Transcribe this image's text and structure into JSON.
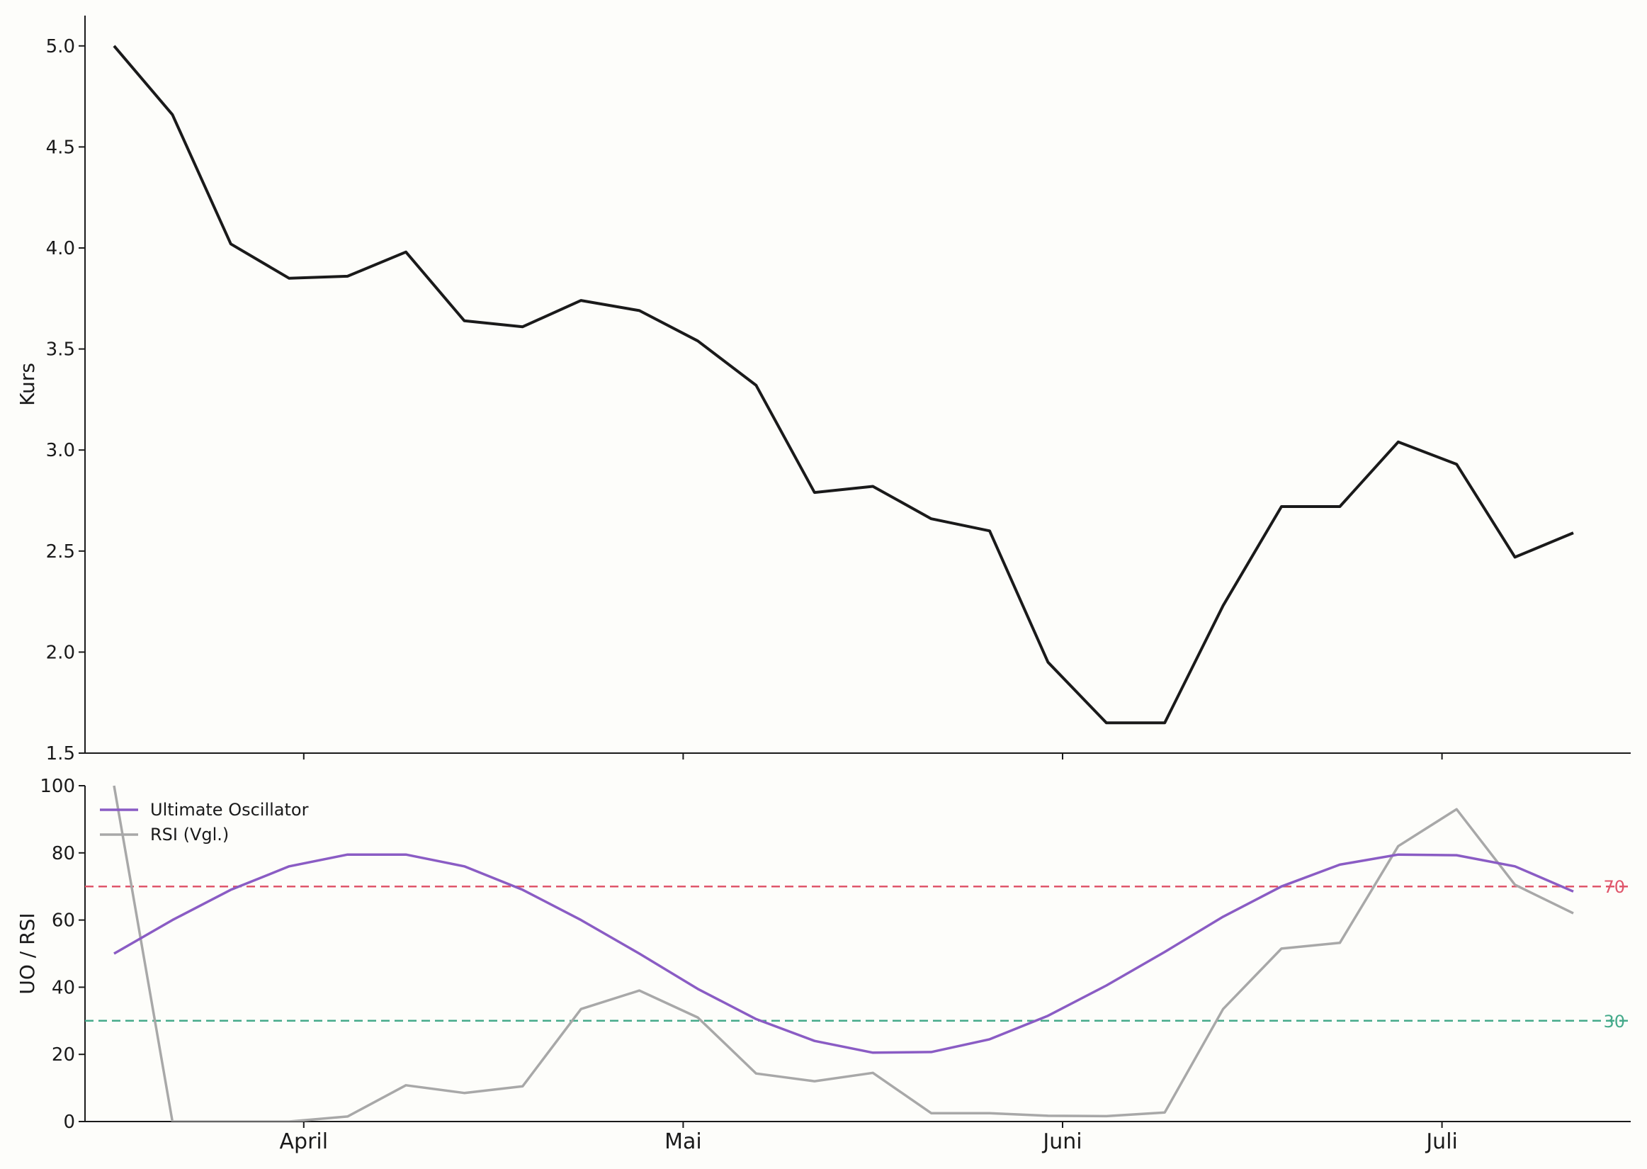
{
  "chart_data": [
    {
      "type": "line",
      "panel": "price",
      "xlabel": "",
      "ylabel": "Kurs",
      "ylim": [
        1.5,
        5.15
      ],
      "yticks": [
        1.5,
        2.0,
        2.5,
        3.0,
        3.5,
        4.0,
        4.5,
        5.0
      ],
      "grid": false,
      "series": [
        {
          "color": "#1a1a1a",
          "x": [
            0,
            1,
            2,
            3,
            4,
            5,
            6,
            7,
            8,
            9,
            10,
            11,
            12,
            13,
            14,
            15,
            16,
            17,
            18,
            19,
            20,
            21,
            22,
            23,
            24,
            25
          ],
          "values": [
            5.0,
            4.66,
            4.02,
            3.85,
            3.86,
            3.98,
            3.64,
            3.61,
            3.74,
            3.69,
            3.54,
            3.32,
            2.79,
            2.82,
            2.66,
            2.6,
            1.95,
            1.65,
            1.65,
            2.23,
            2.72,
            2.72,
            3.04,
            2.93,
            2.47,
            2.59
          ]
        }
      ]
    },
    {
      "type": "line",
      "panel": "oscillator",
      "xlabel": "",
      "ylabel": "UO / RSI",
      "ylim": [
        0,
        100
      ],
      "yticks": [
        0,
        20,
        40,
        60,
        80,
        100
      ],
      "grid": false,
      "legend": "top-left",
      "x_tick_labels": [
        {
          "label": "April",
          "x": 3.25
        },
        {
          "label": "Mai",
          "x": 9.75
        },
        {
          "label": "Juni",
          "x": 16.25
        },
        {
          "label": "Juli",
          "x": 22.75
        }
      ],
      "series": [
        {
          "name": "Ultimate Oscillator",
          "color": "#8a5cc4",
          "x": [
            0,
            1,
            2,
            3,
            4,
            5,
            6,
            7,
            8,
            9,
            10,
            11,
            12,
            13,
            14,
            15,
            16,
            17,
            18,
            19,
            20,
            21,
            22,
            23,
            24,
            25
          ],
          "values": [
            50,
            60,
            69,
            76,
            79.5,
            79.5,
            76,
            69,
            60,
            50,
            39.5,
            30.5,
            24,
            20.5,
            20.7,
            24.5,
            31.5,
            40.5,
            50.5,
            61,
            70,
            76.5,
            79.5,
            79.3,
            76,
            68.5
          ]
        },
        {
          "name": "RSI (Vgl.)",
          "color": "#a8a8a8",
          "x": [
            0,
            1,
            2,
            3,
            4,
            5,
            6,
            7,
            8,
            9,
            10,
            11,
            12,
            13,
            14,
            15,
            16,
            17,
            18,
            19,
            20,
            21,
            22,
            23,
            24,
            25
          ],
          "values": [
            100,
            0,
            0,
            0,
            1.5,
            10.8,
            8.5,
            10.5,
            33.5,
            39,
            31,
            14.3,
            12,
            14.5,
            2.5,
            2.5,
            1.7,
            1.6,
            2.7,
            33.5,
            51.5,
            53.2,
            82,
            93,
            70.5,
            62
          ]
        }
      ],
      "reference_lines": [
        {
          "value": 70,
          "label": "70",
          "color": "#e0566b"
        },
        {
          "value": 30,
          "label": "30",
          "color": "#45aa8a"
        }
      ]
    }
  ]
}
